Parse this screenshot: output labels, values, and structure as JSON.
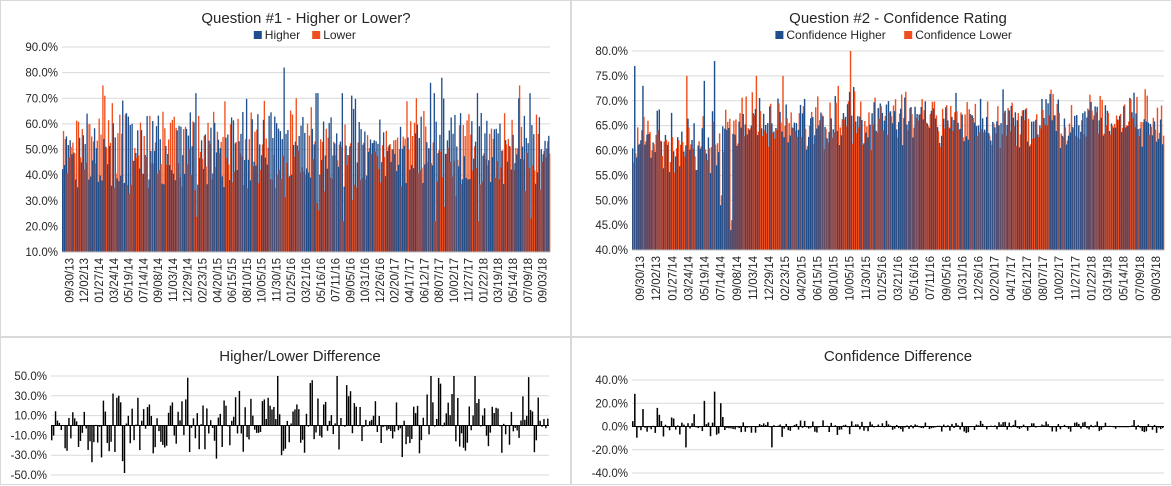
{
  "colors": {
    "higher": "#1f4e8c",
    "lower": "#f04e1c",
    "diff": "#000000",
    "grid": "#d9d9d9"
  },
  "x_labels": [
    "09/30/13",
    "12/02/13",
    "01/27/14",
    "03/24/14",
    "05/19/14",
    "07/14/14",
    "09/08/14",
    "11/03/14",
    "12/29/14",
    "02/23/15",
    "04/20/15",
    "06/15/15",
    "08/10/15",
    "10/05/15",
    "11/30/15",
    "01/25/16",
    "03/21/16",
    "05/16/16",
    "07/11/16",
    "09/05/16",
    "10/31/16",
    "12/26/16",
    "02/20/17",
    "04/17/17",
    "06/12/17",
    "08/07/17",
    "10/02/17",
    "11/27/17",
    "01/22/18",
    "03/19/18",
    "05/14/18",
    "07/09/18",
    "09/03/18"
  ],
  "chart_data": [
    {
      "id": "q1",
      "type": "bar",
      "title": "Question #1 - Higher or Lower?",
      "legend": [
        "Higher",
        "Lower"
      ],
      "legend_position": "top",
      "ylim": [
        10,
        90
      ],
      "yticks": [
        "90.0%",
        "80.0%",
        "70.0%",
        "60.0%",
        "50.0%",
        "40.0%",
        "30.0%",
        "20.0%",
        "10.0%"
      ],
      "grid": true,
      "series": [
        {
          "name": "Higher",
          "summary": "weekly share roughly 35%-70%, peaks near 82% (Dec 2014) and 78% (Jan 2018)"
        },
        {
          "name": "Lower",
          "summary": "weekly share roughly 30%-65%, peaks near 75% (Mar 2014)"
        }
      ]
    },
    {
      "id": "q2",
      "type": "bar",
      "title": "Question #2 - Confidence Rating",
      "legend": [
        "Confidence Higher",
        "Confidence Lower"
      ],
      "legend_position": "top",
      "ylim": [
        40,
        80
      ],
      "yticks": [
        "80.0%",
        "75.0%",
        "70.0%",
        "65.0%",
        "60.0%",
        "55.0%",
        "50.0%",
        "45.0%",
        "40.0%"
      ],
      "grid": true,
      "series": [
        {
          "name": "Confidence Higher",
          "summary": "mostly 60%-72%, peak near 78% (May 2014)"
        },
        {
          "name": "Confidence Lower",
          "summary": "mostly 62%-72%, peak near 80% (Dec 2015)"
        }
      ]
    },
    {
      "id": "diff1",
      "type": "bar",
      "title": "Higher/Lower Difference",
      "ylim": [
        -50,
        50
      ],
      "yticks": [
        "50.0%",
        "30.0%",
        "10.0%",
        "-10.0%",
        "-30.0%",
        "-50.0%"
      ],
      "grid": true,
      "summary": "weekly difference between -48% and +50%"
    },
    {
      "id": "diff2",
      "type": "bar",
      "title": "Confidence Difference",
      "ylim": [
        -40,
        40
      ],
      "yticks": [
        "40.0%",
        "20.0%",
        "0.0%",
        "-20.0%",
        "-40.0%"
      ],
      "grid": true,
      "summary": "weekly difference mostly within -10% to +10%, up to +30% in 2014"
    }
  ]
}
